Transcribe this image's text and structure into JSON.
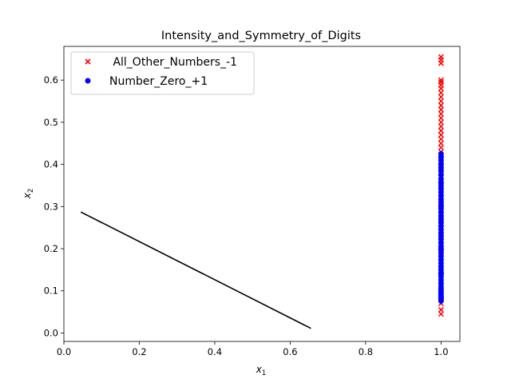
{
  "chart_data": {
    "type": "scatter",
    "title": "Intensity_and_Symmetry_of_Digits",
    "xlabel": {
      "base": "x",
      "sub": "1"
    },
    "ylabel": {
      "base": "x",
      "sub": "2"
    },
    "xlim": [
      0.0,
      1.05
    ],
    "ylim": [
      -0.02,
      0.68
    ],
    "xticks": [
      0.0,
      0.2,
      0.4,
      0.6,
      0.8,
      1.0
    ],
    "xtick_labels": [
      "0.0",
      "0.2",
      "0.4",
      "0.6",
      "0.8",
      "1.0"
    ],
    "yticks": [
      0.0,
      0.1,
      0.2,
      0.3,
      0.4,
      0.5,
      0.6
    ],
    "ytick_labels": [
      "0.0",
      "0.1",
      "0.2",
      "0.3",
      "0.4",
      "0.5",
      "0.6"
    ],
    "grid": false,
    "legend_position": "top-left",
    "series": [
      {
        "name": " All_Other_Numbers_-1",
        "marker": "x",
        "color": "#ff0000",
        "x": [
          1.0,
          1.0,
          1.0,
          1.0,
          1.0,
          1.0,
          1.0,
          1.0,
          1.0,
          1.0,
          1.0,
          1.0,
          1.0,
          1.0,
          1.0,
          1.0,
          1.0,
          1.0,
          1.0,
          1.0,
          1.0,
          1.0,
          1.0,
          1.0,
          1.0,
          1.0,
          1.0,
          1.0,
          1.0,
          1.0,
          1.0,
          1.0,
          1.0,
          1.0,
          1.0,
          1.0,
          1.0,
          1.0,
          1.0,
          1.0,
          1.0,
          1.0,
          1.0,
          1.0,
          1.0,
          1.0,
          1.0,
          1.0,
          1.0,
          1.0,
          1.0,
          1.0,
          1.0,
          1.0,
          1.0
        ],
        "y": [
          0.655,
          0.648,
          0.64,
          0.6,
          0.595,
          0.588,
          0.58,
          0.57,
          0.56,
          0.55,
          0.54,
          0.53,
          0.52,
          0.51,
          0.5,
          0.49,
          0.48,
          0.47,
          0.46,
          0.45,
          0.44,
          0.43,
          0.42,
          0.41,
          0.4,
          0.39,
          0.385,
          0.38,
          0.37,
          0.36,
          0.35,
          0.34,
          0.33,
          0.32,
          0.31,
          0.3,
          0.29,
          0.28,
          0.27,
          0.26,
          0.25,
          0.24,
          0.23,
          0.22,
          0.21,
          0.2,
          0.19,
          0.18,
          0.15,
          0.12,
          0.1,
          0.09,
          0.07,
          0.055,
          0.045
        ]
      },
      {
        "name": "Number_Zero_+1",
        "marker": "o",
        "color": "#0000ff",
        "x": [
          1.0,
          1.0,
          1.0,
          1.0,
          1.0,
          1.0,
          1.0,
          1.0,
          1.0,
          1.0,
          1.0,
          1.0,
          1.0,
          1.0,
          1.0,
          1.0,
          1.0,
          1.0,
          1.0,
          1.0,
          1.0,
          1.0,
          1.0,
          1.0,
          1.0,
          1.0,
          1.0,
          1.0,
          1.0,
          1.0,
          1.0,
          1.0,
          1.0,
          1.0,
          1.0,
          1.0,
          1.0,
          1.0,
          1.0,
          1.0,
          1.0,
          1.0,
          1.0,
          1.0,
          1.0,
          1.0,
          1.0,
          1.0,
          1.0,
          1.0
        ],
        "y": [
          0.425,
          0.418,
          0.41,
          0.4,
          0.392,
          0.385,
          0.375,
          0.366,
          0.358,
          0.35,
          0.342,
          0.334,
          0.326,
          0.318,
          0.31,
          0.302,
          0.294,
          0.286,
          0.278,
          0.27,
          0.262,
          0.254,
          0.246,
          0.238,
          0.23,
          0.222,
          0.214,
          0.206,
          0.198,
          0.19,
          0.182,
          0.174,
          0.166,
          0.158,
          0.15,
          0.142,
          0.134,
          0.126,
          0.118,
          0.11,
          0.104,
          0.098,
          0.093,
          0.088,
          0.084,
          0.08,
          0.076,
          0.3,
          0.2,
          0.14
        ]
      },
      {
        "name": "",
        "type": "line",
        "color": "#000000",
        "x": [
          0.045,
          0.655
        ],
        "y": [
          0.287,
          0.011
        ]
      }
    ]
  }
}
